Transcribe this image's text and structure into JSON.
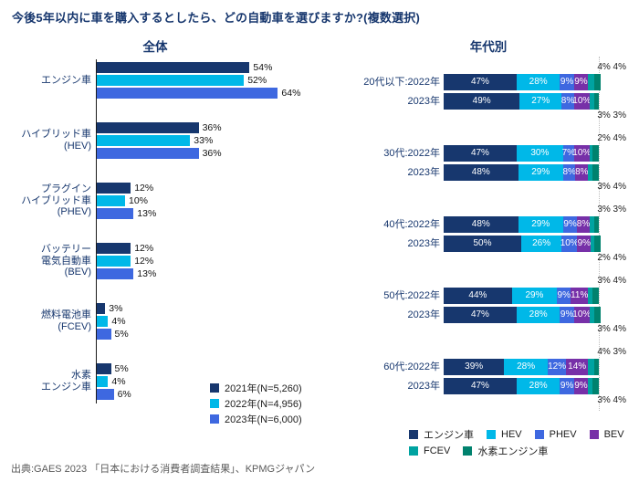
{
  "page_title": "今後5年以内に車を購入するとしたら、どの自動車を選びますか?(複数選択)",
  "source": "出典:GAES 2023 「日本における消費者調査結果」、KPMGジャパン",
  "chart_data": [
    {
      "type": "bar",
      "title": "全体",
      "orientation": "horizontal",
      "unit": "%",
      "x_max": 70,
      "categories": [
        [
          "エンジン車"
        ],
        [
          "ハイブリッド車",
          "(HEV)"
        ],
        [
          "プラグイン",
          "ハイブリッド車",
          "(PHEV)"
        ],
        [
          "バッテリー",
          "電気自動車",
          "(BEV)"
        ],
        [
          "燃料電池車",
          "(FCEV)"
        ],
        [
          "水素",
          "エンジン車"
        ]
      ],
      "series": [
        {
          "name": "2021年(N=5,260)",
          "color": "#17376E",
          "values": [
            54,
            36,
            12,
            12,
            3,
            5
          ]
        },
        {
          "name": "2022年(N=4,956)",
          "color": "#00B8E8",
          "values": [
            52,
            33,
            10,
            12,
            4,
            4
          ]
        },
        {
          "name": "2023年(N=6,000)",
          "color": "#3E68E0",
          "values": [
            64,
            36,
            13,
            13,
            5,
            6
          ]
        }
      ]
    },
    {
      "type": "stacked-bar",
      "title": "年代別",
      "orientation": "horizontal",
      "unit": "%",
      "x_max": 100,
      "segments": [
        {
          "name": "エンジン車",
          "color": "#17376E"
        },
        {
          "name": "HEV",
          "color": "#00B8E8"
        },
        {
          "name": "PHEV",
          "color": "#3E68E0"
        },
        {
          "name": "BEV",
          "color": "#7730A8"
        },
        {
          "name": "FCEV",
          "color": "#00A3A1"
        },
        {
          "name": "水素エンジン車",
          "color": "#00826E"
        }
      ],
      "groups": [
        {
          "rows": [
            {
              "label": "20代以下:2022年",
              "values": [
                47,
                28,
                9,
                9,
                4,
                4
              ],
              "outside": "above"
            },
            {
              "label": "2023年",
              "values": [
                49,
                27,
                8,
                10,
                3,
                3
              ],
              "outside": "below"
            }
          ]
        },
        {
          "rows": [
            {
              "label": "30代:2022年",
              "values": [
                47,
                30,
                7,
                10,
                2,
                4
              ],
              "outside": "above"
            },
            {
              "label": "2023年",
              "values": [
                48,
                29,
                8,
                8,
                3,
                4
              ],
              "outside": "below"
            }
          ]
        },
        {
          "rows": [
            {
              "label": "40代:2022年",
              "values": [
                48,
                29,
                9,
                8,
                3,
                3
              ],
              "outside": "above"
            },
            {
              "label": "2023年",
              "values": [
                50,
                26,
                10,
                9,
                2,
                4
              ],
              "outside": "below"
            }
          ]
        },
        {
          "rows": [
            {
              "label": "50代:2022年",
              "values": [
                44,
                29,
                9,
                11,
                3,
                4
              ],
              "outside": "above"
            },
            {
              "label": "2023年",
              "values": [
                47,
                28,
                9,
                10,
                3,
                4
              ],
              "outside": "below"
            }
          ]
        },
        {
          "rows": [
            {
              "label": "60代:2022年",
              "values": [
                39,
                28,
                12,
                14,
                4,
                3
              ],
              "outside": "above"
            },
            {
              "label": "2023年",
              "values": [
                47,
                28,
                9,
                9,
                3,
                4
              ],
              "outside": "below"
            }
          ]
        }
      ]
    }
  ]
}
